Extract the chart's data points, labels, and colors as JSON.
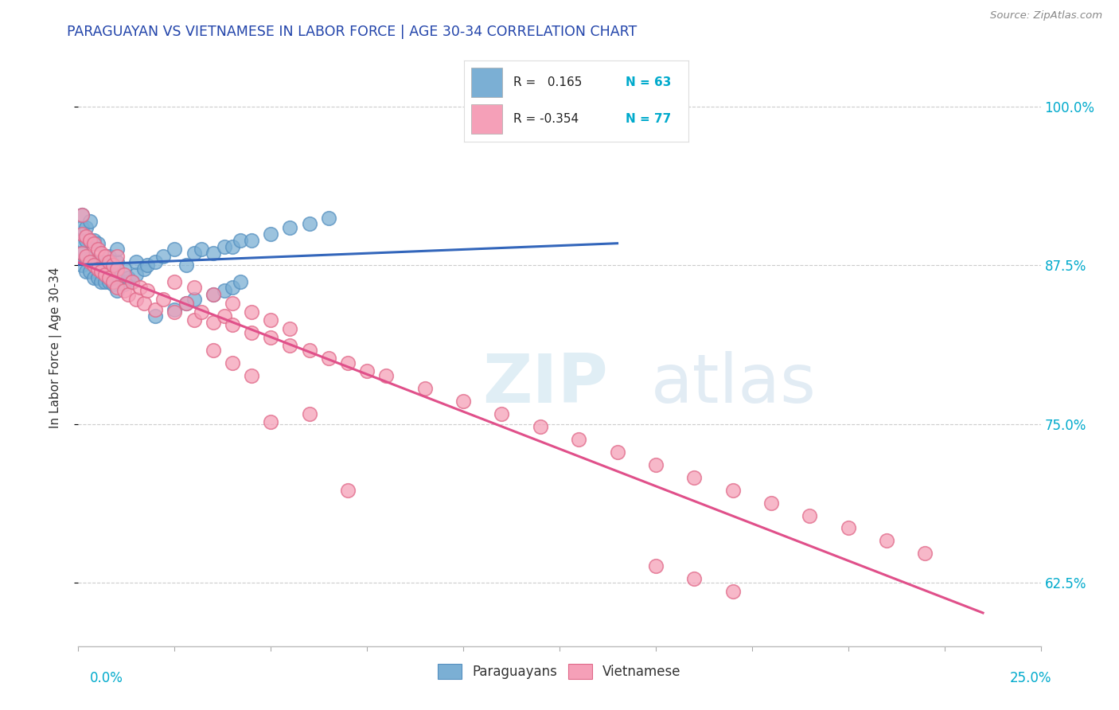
{
  "title": "PARAGUAYAN VS VIETNAMESE IN LABOR FORCE | AGE 30-34 CORRELATION CHART",
  "source": "Source: ZipAtlas.com",
  "ylabel": "In Labor Force | Age 30-34",
  "y_tick_labels": [
    "62.5%",
    "75.0%",
    "87.5%",
    "100.0%"
  ],
  "y_tick_values": [
    0.625,
    0.75,
    0.875,
    1.0
  ],
  "x_min": 0.0,
  "x_max": 0.25,
  "y_min": 0.575,
  "y_max": 1.045,
  "blue_color": "#7bafd4",
  "blue_edge_color": "#5590c0",
  "pink_color": "#f5a0b8",
  "pink_edge_color": "#e06888",
  "trend_blue_color": "#3366bb",
  "trend_pink_color": "#e0508a",
  "title_color": "#2244aa",
  "source_color": "#888888",
  "label_color": "#333333",
  "axis_label_color": "#00aacc",
  "grid_color": "#cccccc",
  "legend_r_blue": "R =   0.165",
  "legend_n_blue": "N = 63",
  "legend_r_pink": "R = -0.354",
  "legend_n_pink": "N = 77",
  "blue_x": [
    0.001,
    0.001,
    0.001,
    0.001,
    0.001,
    0.002,
    0.002,
    0.002,
    0.002,
    0.003,
    0.003,
    0.003,
    0.003,
    0.004,
    0.004,
    0.004,
    0.005,
    0.005,
    0.005,
    0.006,
    0.006,
    0.007,
    0.007,
    0.008,
    0.008,
    0.008,
    0.009,
    0.009,
    0.01,
    0.01,
    0.01,
    0.01,
    0.012,
    0.012,
    0.013,
    0.014,
    0.015,
    0.015,
    0.017,
    0.018,
    0.02,
    0.022,
    0.025,
    0.028,
    0.03,
    0.032,
    0.035,
    0.038,
    0.04,
    0.042,
    0.045,
    0.05,
    0.055,
    0.06,
    0.065,
    0.02,
    0.025,
    0.028,
    0.03,
    0.035,
    0.038,
    0.04,
    0.042
  ],
  "blue_y": [
    0.875,
    0.885,
    0.895,
    0.905,
    0.915,
    0.87,
    0.88,
    0.895,
    0.905,
    0.87,
    0.88,
    0.895,
    0.91,
    0.865,
    0.875,
    0.895,
    0.865,
    0.878,
    0.892,
    0.862,
    0.878,
    0.862,
    0.876,
    0.862,
    0.872,
    0.882,
    0.86,
    0.875,
    0.855,
    0.868,
    0.878,
    0.888,
    0.86,
    0.872,
    0.865,
    0.862,
    0.868,
    0.878,
    0.872,
    0.875,
    0.878,
    0.882,
    0.888,
    0.875,
    0.885,
    0.888,
    0.885,
    0.89,
    0.89,
    0.895,
    0.895,
    0.9,
    0.905,
    0.908,
    0.912,
    0.835,
    0.84,
    0.845,
    0.848,
    0.852,
    0.855,
    0.858,
    0.862
  ],
  "pink_x": [
    0.001,
    0.001,
    0.001,
    0.002,
    0.002,
    0.003,
    0.003,
    0.004,
    0.004,
    0.005,
    0.005,
    0.006,
    0.006,
    0.007,
    0.007,
    0.008,
    0.008,
    0.009,
    0.009,
    0.01,
    0.01,
    0.01,
    0.012,
    0.012,
    0.013,
    0.014,
    0.015,
    0.016,
    0.017,
    0.018,
    0.02,
    0.022,
    0.025,
    0.028,
    0.03,
    0.032,
    0.035,
    0.038,
    0.04,
    0.045,
    0.05,
    0.055,
    0.06,
    0.065,
    0.07,
    0.075,
    0.08,
    0.09,
    0.1,
    0.11,
    0.12,
    0.13,
    0.14,
    0.15,
    0.16,
    0.17,
    0.18,
    0.19,
    0.2,
    0.21,
    0.22,
    0.05,
    0.06,
    0.07,
    0.035,
    0.04,
    0.045,
    0.15,
    0.16,
    0.17,
    0.025,
    0.03,
    0.035,
    0.04,
    0.045,
    0.05,
    0.055
  ],
  "pink_y": [
    0.885,
    0.9,
    0.915,
    0.882,
    0.898,
    0.878,
    0.895,
    0.875,
    0.892,
    0.872,
    0.888,
    0.87,
    0.885,
    0.868,
    0.882,
    0.865,
    0.878,
    0.862,
    0.875,
    0.858,
    0.872,
    0.882,
    0.855,
    0.868,
    0.852,
    0.862,
    0.848,
    0.858,
    0.845,
    0.855,
    0.84,
    0.848,
    0.838,
    0.845,
    0.832,
    0.838,
    0.83,
    0.835,
    0.828,
    0.822,
    0.818,
    0.812,
    0.808,
    0.802,
    0.798,
    0.792,
    0.788,
    0.778,
    0.768,
    0.758,
    0.748,
    0.738,
    0.728,
    0.718,
    0.708,
    0.698,
    0.688,
    0.678,
    0.668,
    0.658,
    0.648,
    0.752,
    0.758,
    0.698,
    0.808,
    0.798,
    0.788,
    0.638,
    0.628,
    0.618,
    0.862,
    0.858,
    0.852,
    0.845,
    0.838,
    0.832,
    0.825
  ]
}
